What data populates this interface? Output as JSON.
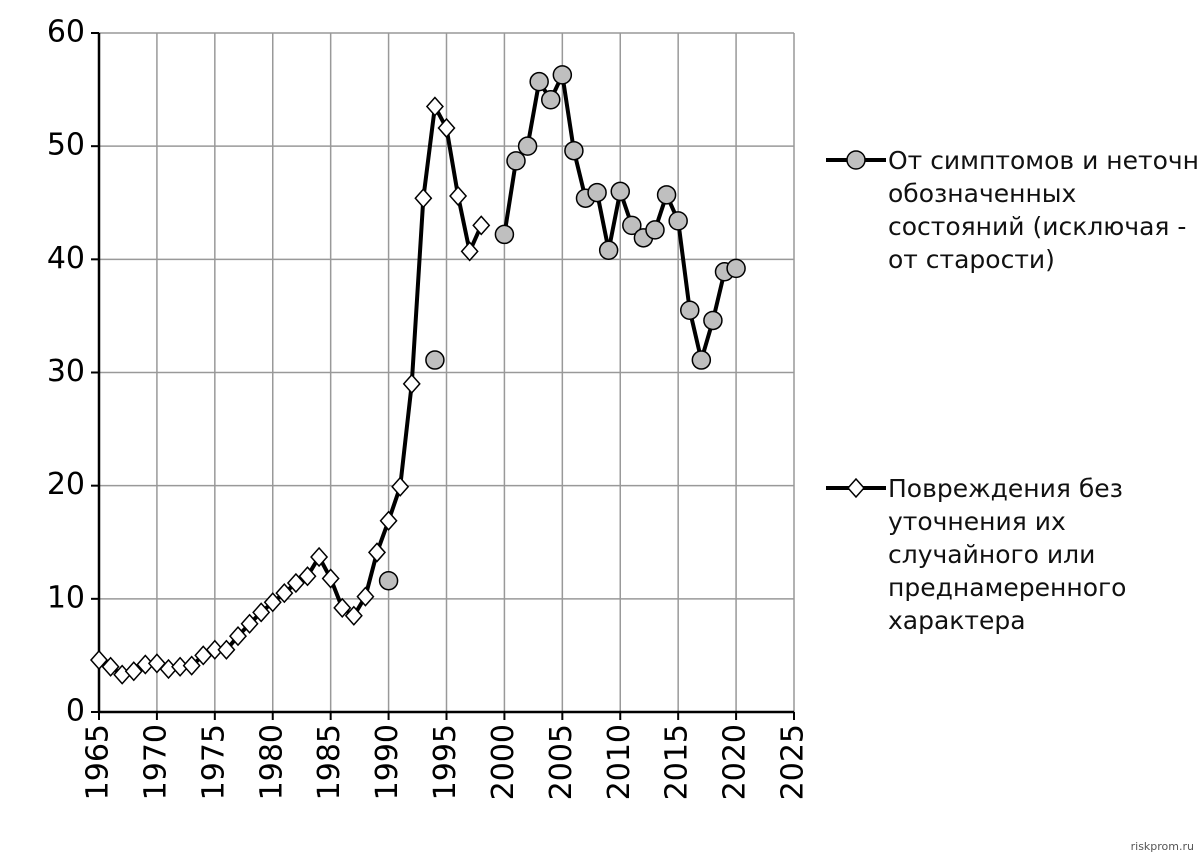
{
  "chart_data": {
    "type": "line",
    "x": [
      1965,
      1966,
      1967,
      1968,
      1969,
      1970,
      1971,
      1972,
      1973,
      1974,
      1975,
      1976,
      1977,
      1978,
      1979,
      1980,
      1981,
      1982,
      1983,
      1984,
      1985,
      1986,
      1987,
      1988,
      1989,
      1990,
      1991,
      1992,
      1993,
      1994,
      1995,
      1996,
      1997,
      1998,
      1999,
      2000,
      2001,
      2002,
      2003,
      2004,
      2005,
      2006,
      2007,
      2008,
      2009,
      2010,
      2011,
      2012,
      2013,
      2014,
      2015,
      2016,
      2017,
      2018,
      2019,
      2020
    ],
    "series": [
      {
        "name": "От симптомов и неточно обозначенных состояний (исключая - от старости)",
        "color": "#bfbfbf",
        "marker": "circle",
        "values": [
          null,
          null,
          null,
          null,
          null,
          null,
          null,
          null,
          null,
          null,
          null,
          null,
          null,
          null,
          null,
          null,
          null,
          null,
          null,
          null,
          null,
          null,
          null,
          null,
          null,
          11.6,
          null,
          null,
          null,
          31.1,
          null,
          null,
          null,
          null,
          null,
          42.2,
          48.7,
          50.0,
          55.7,
          54.1,
          56.3,
          49.6,
          45.4,
          45.9,
          40.8,
          46.0,
          43.0,
          41.9,
          42.6,
          45.7,
          43.4,
          35.5,
          31.1,
          34.6,
          38.9,
          39.2
        ]
      },
      {
        "name": "Повреждения без уточнения их случайного или преднамеренного характера",
        "color": "#ffffff",
        "marker": "diamond",
        "values": [
          4.6,
          4.0,
          3.3,
          3.6,
          4.2,
          4.3,
          3.8,
          4.0,
          4.1,
          5.0,
          5.5,
          5.5,
          6.7,
          7.8,
          8.8,
          9.7,
          10.5,
          11.4,
          12.0,
          13.7,
          11.8,
          9.2,
          8.5,
          10.2,
          14.1,
          16.9,
          19.9,
          29.0,
          45.4,
          53.5,
          51.6,
          45.6,
          40.7,
          43.0,
          null,
          null,
          null,
          null,
          null,
          null,
          null,
          null,
          null,
          null,
          null,
          null,
          null,
          null,
          null,
          null,
          null,
          null,
          null,
          null,
          null,
          null
        ]
      }
    ],
    "xlim": [
      1965,
      2025
    ],
    "xticks": [
      1965,
      1970,
      1975,
      1980,
      1985,
      1990,
      1995,
      2000,
      2005,
      2010,
      2015,
      2020,
      2025
    ],
    "ylim": [
      0,
      60
    ],
    "yticks": [
      0,
      10,
      20,
      30,
      40,
      50,
      60
    ],
    "grid": true,
    "watermark": "riskprom.ru"
  }
}
